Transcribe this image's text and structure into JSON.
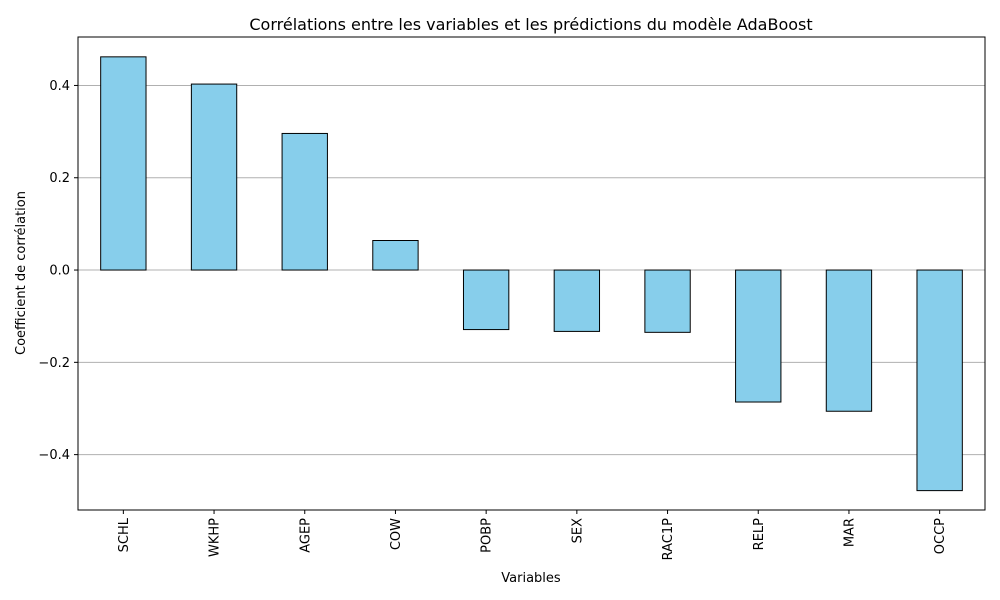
{
  "chart_data": {
    "type": "bar",
    "title": "Corrélations entre les variables et les prédictions du modèle AdaBoost",
    "xlabel": "Variables",
    "ylabel": "Coefficient de corrélation",
    "categories": [
      "SCHL",
      "WKHP",
      "AGEP",
      "COW",
      "POBP",
      "SEX",
      "RAC1P",
      "RELP",
      "MAR",
      "OCCP"
    ],
    "values": [
      0.462,
      0.403,
      0.296,
      0.064,
      -0.129,
      -0.133,
      -0.135,
      -0.286,
      -0.306,
      -0.478
    ],
    "ylim": [
      -0.52,
      0.505
    ],
    "yticks": [
      -0.4,
      -0.2,
      0.0,
      0.2,
      0.4
    ],
    "ytick_labels": [
      "−0.4",
      "−0.2",
      "0.0",
      "0.2",
      "0.4"
    ],
    "grid": "y",
    "bar_color": "#87ceeb",
    "edge_color": "#000000",
    "grid_color": "#b0b0b0"
  }
}
